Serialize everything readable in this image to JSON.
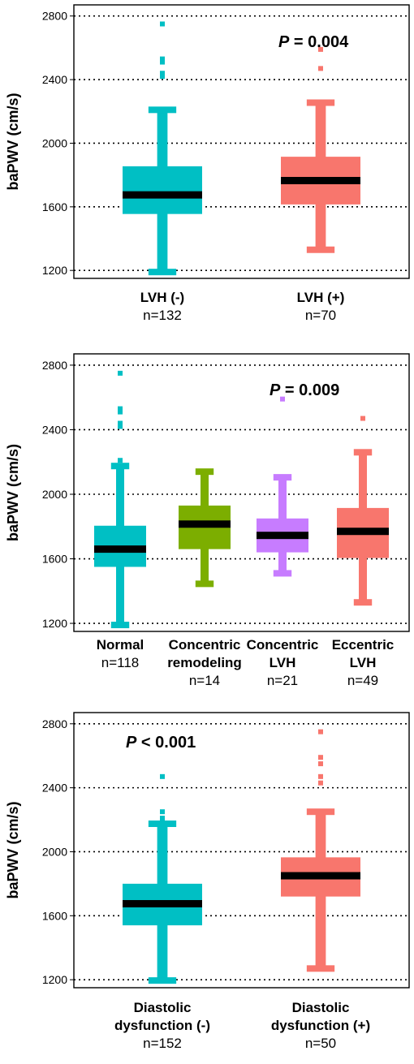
{
  "chart_data": [
    {
      "type": "box",
      "ylabel": "baPWV (cm/s)",
      "ylim": [
        1150,
        2870
      ],
      "yticks": [
        1200,
        1600,
        2000,
        2400,
        2800
      ],
      "grid": true,
      "p_value": {
        "symbol": "P",
        "text": " = 0.004",
        "position": "top-right"
      },
      "categories": [
        {
          "lines": [
            "LVH (-)"
          ],
          "n": "n=132",
          "color": "#00BFC4",
          "min": 1190,
          "q1": 1555,
          "median": 1675,
          "q3": 1855,
          "max": 2210,
          "outliers": [
            2420,
            2440,
            2510,
            2530,
            2750
          ]
        },
        {
          "lines": [
            "LVH (+)"
          ],
          "n": "n=70",
          "color": "#F8766D",
          "min": 1330,
          "q1": 1615,
          "median": 1765,
          "q3": 1915,
          "max": 2255,
          "outliers": [
            2470,
            2590
          ]
        }
      ]
    },
    {
      "type": "box",
      "ylabel": "baPWV (cm/s)",
      "ylim": [
        1150,
        2870
      ],
      "yticks": [
        1200,
        1600,
        2000,
        2400,
        2800
      ],
      "grid": true,
      "p_value": {
        "symbol": "P",
        "text": " = 0.009",
        "position": "top-right"
      },
      "categories": [
        {
          "lines": [
            "Normal"
          ],
          "n": "n=118",
          "color": "#00BFC4",
          "min": 1190,
          "q1": 1550,
          "median": 1660,
          "q3": 1805,
          "max": 2175,
          "outliers": [
            2210,
            2420,
            2440,
            2510,
            2530,
            2750
          ]
        },
        {
          "lines": [
            "Concentric",
            "remodeling"
          ],
          "n": "n=14",
          "color": "#7CAE00",
          "min": 1445,
          "q1": 1660,
          "median": 1815,
          "q3": 1930,
          "max": 2140,
          "outliers": []
        },
        {
          "lines": [
            "Concentric",
            "LVH"
          ],
          "n": "n=21",
          "color": "#C77CFF",
          "min": 1510,
          "q1": 1640,
          "median": 1745,
          "q3": 1850,
          "max": 2105,
          "outliers": [
            2590
          ]
        },
        {
          "lines": [
            "Eccentric",
            "LVH"
          ],
          "n": "n=49",
          "color": "#F8766D",
          "min": 1330,
          "q1": 1605,
          "median": 1770,
          "q3": 1915,
          "max": 2260,
          "outliers": [
            2470
          ]
        }
      ]
    },
    {
      "type": "box",
      "ylabel": "baPWV (cm/s)",
      "ylim": [
        1150,
        2870
      ],
      "yticks": [
        1200,
        1600,
        2000,
        2400,
        2800
      ],
      "grid": true,
      "p_value": {
        "symbol": "P",
        "text": " < 0.001",
        "position": "top-left"
      },
      "categories": [
        {
          "lines": [
            "Diastolic",
            "dysfunction (-)"
          ],
          "n": "n=152",
          "color": "#00BFC4",
          "min": 1195,
          "q1": 1540,
          "median": 1675,
          "q3": 1800,
          "max": 2175,
          "outliers": [
            2210,
            2250,
            2470
          ]
        },
        {
          "lines": [
            "Diastolic",
            "dysfunction (+)"
          ],
          "n": "n=50",
          "color": "#F8766D",
          "min": 1270,
          "q1": 1720,
          "median": 1850,
          "q3": 1965,
          "max": 2250,
          "outliers": [
            2430,
            2470,
            2550,
            2590,
            2750
          ]
        }
      ]
    }
  ]
}
